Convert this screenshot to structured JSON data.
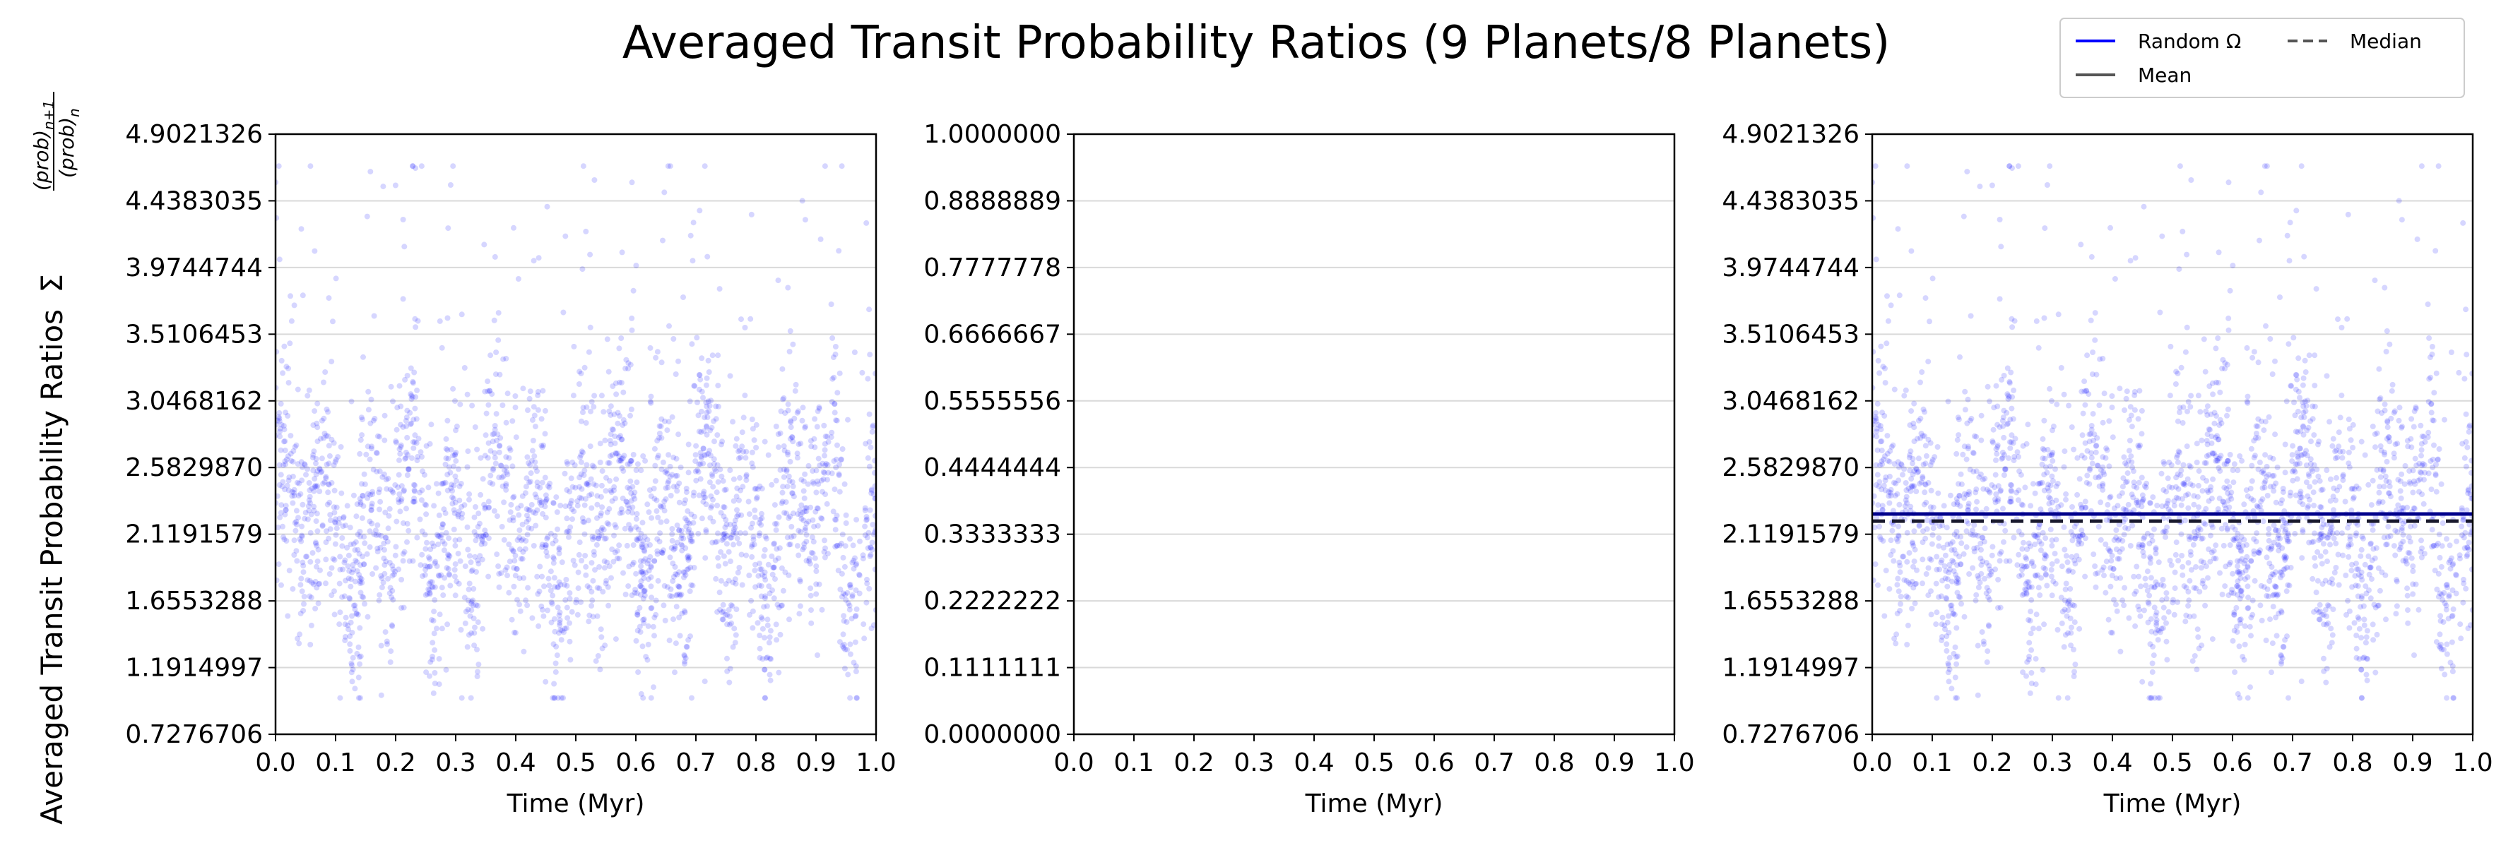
{
  "figure": {
    "title": "Averaged Transit Probability Ratios (9 Planets/8 Planets)",
    "ylabel_text": "Averaged Transit Probability Ratios",
    "ylabel_sum": "Σ",
    "ylabel_num": "(prob)",
    "ylabel_num_sub": "n+1",
    "ylabel_den": "(prob)",
    "ylabel_den_sub": "n"
  },
  "legend": {
    "entries": [
      {
        "label": "Random Ω",
        "style": "solid",
        "color": "#0000ff"
      },
      {
        "label": "Median",
        "style": "dashed",
        "color": "#555555"
      },
      {
        "label": "Mean",
        "style": "solid",
        "color": "#555555"
      }
    ],
    "placement": "top-right"
  },
  "colors": {
    "points": "#0000ff",
    "mean_line": "#00008b",
    "median_line": "#1a1a2e",
    "grid": "#d9d9d9"
  },
  "chart_data": [
    {
      "type": "scatter",
      "xlabel": "Time (Myr)",
      "xlim": [
        0.0,
        1.0
      ],
      "xticks": [
        "0.0",
        "0.1",
        "0.2",
        "0.3",
        "0.4",
        "0.5",
        "0.6",
        "0.7",
        "0.8",
        "0.9",
        "1.0"
      ],
      "ylim": [
        0.7276706,
        4.9021326
      ],
      "yticks": [
        "0.7276706",
        "1.1914997",
        "1.6553288",
        "2.1191579",
        "2.5829870",
        "3.0468162",
        "3.5106453",
        "3.9744744",
        "4.4383035",
        "4.9021326"
      ],
      "grid": "horizontal",
      "series": [
        {
          "values_summary": {
            "n_points": 2400,
            "typical_range": [
              1.3,
              3.6
            ],
            "center": 2.2,
            "max": 4.68,
            "min": 0.98
          }
        }
      ]
    },
    {
      "type": "scatter",
      "xlabel": "Time (Myr)",
      "xlim": [
        0.0,
        1.0
      ],
      "xticks": [
        "0.0",
        "0.1",
        "0.2",
        "0.3",
        "0.4",
        "0.5",
        "0.6",
        "0.7",
        "0.8",
        "0.9",
        "1.0"
      ],
      "ylim": [
        0.0,
        1.0
      ],
      "yticks": [
        "0.0000000",
        "0.1111111",
        "0.2222222",
        "0.3333333",
        "0.4444444",
        "0.5555556",
        "0.6666667",
        "0.7777778",
        "0.8888889",
        "1.0000000"
      ],
      "grid": "horizontal",
      "series": []
    },
    {
      "type": "scatter",
      "xlabel": "Time (Myr)",
      "xlim": [
        0.0,
        1.0
      ],
      "xticks": [
        "0.0",
        "0.1",
        "0.2",
        "0.3",
        "0.4",
        "0.5",
        "0.6",
        "0.7",
        "0.8",
        "0.9",
        "1.0"
      ],
      "ylim": [
        0.7276706,
        4.9021326
      ],
      "yticks": [
        "0.7276706",
        "1.1914997",
        "1.6553288",
        "2.1191579",
        "2.5829870",
        "3.0468162",
        "3.5106453",
        "3.9744744",
        "4.4383035",
        "4.9021326"
      ],
      "grid": "horizontal",
      "series": [
        {
          "values_summary": {
            "n_points": 2400,
            "typical_range": [
              1.3,
              3.6
            ],
            "center": 2.2,
            "max": 4.68,
            "min": 0.98
          }
        }
      ],
      "mean": 2.26,
      "median": 2.21
    }
  ]
}
